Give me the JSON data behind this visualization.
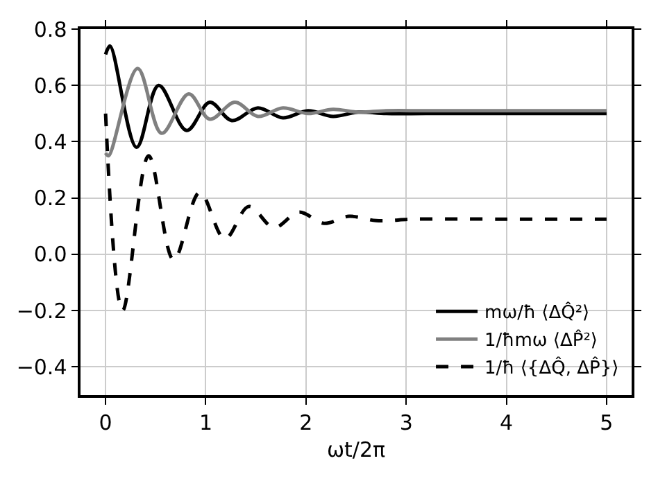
{
  "chart_data": {
    "type": "line",
    "xlabel": "ωt/2π",
    "xlim": [
      -0.25,
      5.25
    ],
    "xticks": [
      0,
      1,
      2,
      3,
      4,
      5
    ],
    "ylim": [
      -0.5,
      0.8
    ],
    "yticks": [
      -0.4,
      -0.2,
      {
        "value": 0,
        "label": "0.0"
      },
      0.2,
      0.4,
      0.6,
      0.8
    ],
    "grid": true,
    "legend": "bottom right",
    "marker": "none",
    "series": [
      {
        "name": "mω/ħ ⟨ΔQ̂²⟩",
        "color": "#000000",
        "line_style": "solid",
        "x": [
          0,
          0.045,
          0.31,
          0.53,
          0.81,
          1.04,
          1.26,
          1.52,
          1.77,
          2.02,
          2.27,
          2.52,
          2.8,
          3.2,
          4,
          5
        ],
        "values": [
          0.71,
          0.74,
          0.38,
          0.6,
          0.44,
          0.54,
          0.475,
          0.52,
          0.485,
          0.51,
          0.49,
          0.505,
          0.5,
          0.5,
          0.5,
          0.5
        ]
      },
      {
        "name": "1/ħmω ⟨ΔP̂²⟩",
        "color": "#808080",
        "line_style": "solid",
        "x": [
          0,
          0.03,
          0.32,
          0.56,
          0.83,
          1.04,
          1.29,
          1.52,
          1.77,
          2.02,
          2.27,
          2.52,
          2.8,
          3.2,
          4,
          5
        ],
        "values": [
          0.36,
          0.35,
          0.66,
          0.43,
          0.57,
          0.48,
          0.54,
          0.49,
          0.52,
          0.5,
          0.515,
          0.505,
          0.51,
          0.51,
          0.51,
          0.51
        ]
      },
      {
        "name": "1/ħ ⟨{ΔQ̂, ΔP̂}⟩",
        "color": "#000000",
        "line_style": "dashed",
        "x": [
          0,
          0.17,
          0.43,
          0.68,
          0.94,
          1.19,
          1.43,
          1.68,
          1.93,
          2.18,
          2.43,
          2.7,
          3.1,
          4,
          5
        ],
        "values": [
          0.5,
          -0.2,
          0.35,
          -0.02,
          0.22,
          0.055,
          0.17,
          0.095,
          0.15,
          0.11,
          0.135,
          0.12,
          0.125,
          0.125,
          0.125
        ]
      }
    ]
  }
}
